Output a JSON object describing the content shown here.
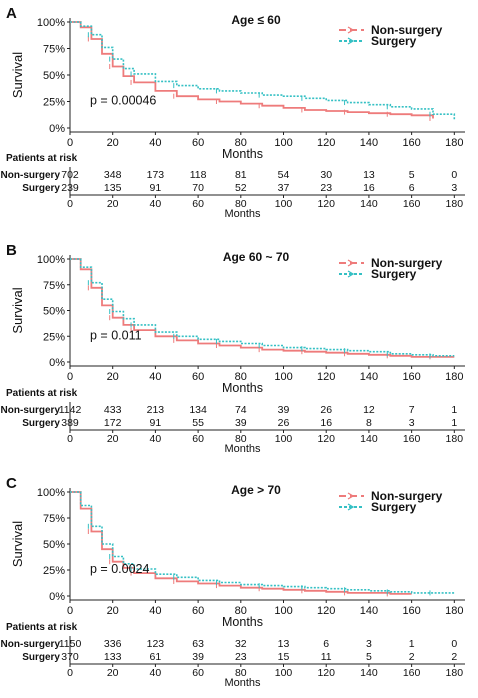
{
  "colors": {
    "non_surgery": "#ee7b7b",
    "surgery": "#35c0c4",
    "axis": "#222222",
    "text": "#111111"
  },
  "chart_data": [
    {
      "type": "line",
      "panel_letter": "A",
      "title": "Age ≤ 60",
      "ylabel": "Survival",
      "xlabel": "Months",
      "pvalue": "p = 0.00046",
      "yticks": [
        "0%",
        "25%",
        "50%",
        "75%",
        "100%"
      ],
      "xticks": [
        0,
        20,
        40,
        60,
        80,
        100,
        120,
        140,
        160,
        180
      ],
      "xlim": [
        0,
        185
      ],
      "ylim": [
        0,
        1
      ],
      "grid": false,
      "legend_position": "top-right",
      "series": [
        {
          "name": "Non-surgery",
          "style": "solid",
          "x": [
            0,
            5,
            10,
            15,
            20,
            25,
            30,
            40,
            50,
            60,
            70,
            80,
            90,
            100,
            110,
            120,
            130,
            140,
            150,
            160,
            170
          ],
          "y": [
            1.0,
            0.95,
            0.84,
            0.7,
            0.58,
            0.49,
            0.43,
            0.35,
            0.3,
            0.27,
            0.25,
            0.23,
            0.21,
            0.19,
            0.17,
            0.16,
            0.15,
            0.14,
            0.13,
            0.12,
            0.09
          ]
        },
        {
          "name": "Surgery",
          "style": "dotted",
          "x": [
            0,
            5,
            10,
            15,
            20,
            25,
            30,
            40,
            50,
            60,
            70,
            80,
            90,
            100,
            110,
            120,
            130,
            140,
            150,
            160,
            170,
            180
          ],
          "y": [
            1.0,
            0.96,
            0.88,
            0.76,
            0.65,
            0.56,
            0.51,
            0.44,
            0.4,
            0.37,
            0.35,
            0.33,
            0.31,
            0.3,
            0.28,
            0.26,
            0.24,
            0.22,
            0.2,
            0.18,
            0.13,
            0.08
          ]
        }
      ],
      "risk_table": {
        "heading": "Patients at risk",
        "rows": [
          {
            "label": "Non-surgery",
            "values": [
              "702",
              "348",
              "173",
              "118",
              "81",
              "54",
              "30",
              "13",
              "5",
              "0"
            ]
          },
          {
            "label": "Surgery",
            "values": [
              "239",
              "135",
              "91",
              "70",
              "52",
              "37",
              "23",
              "16",
              "6",
              "3"
            ]
          }
        ],
        "xticks": [
          0,
          20,
          40,
          60,
          80,
          100,
          120,
          140,
          160,
          180
        ],
        "xlabel": "Months"
      }
    },
    {
      "type": "line",
      "panel_letter": "B",
      "title": "Age 60 ~ 70",
      "ylabel": "Survival",
      "xlabel": "Months",
      "pvalue": "p = 0.011",
      "yticks": [
        "0%",
        "25%",
        "50%",
        "75%",
        "100%"
      ],
      "xticks": [
        0,
        20,
        40,
        60,
        80,
        100,
        120,
        140,
        160,
        180
      ],
      "xlim": [
        0,
        185
      ],
      "ylim": [
        0,
        1
      ],
      "grid": false,
      "legend_position": "top-right",
      "series": [
        {
          "name": "Non-surgery",
          "style": "solid",
          "x": [
            0,
            5,
            10,
            15,
            20,
            25,
            30,
            40,
            50,
            60,
            70,
            80,
            90,
            100,
            110,
            120,
            130,
            140,
            150,
            160,
            170,
            180
          ],
          "y": [
            1.0,
            0.9,
            0.72,
            0.55,
            0.43,
            0.36,
            0.31,
            0.25,
            0.21,
            0.18,
            0.16,
            0.14,
            0.12,
            0.11,
            0.1,
            0.09,
            0.08,
            0.07,
            0.06,
            0.05,
            0.05,
            0.05
          ]
        },
        {
          "name": "Surgery",
          "style": "dotted",
          "x": [
            0,
            5,
            10,
            15,
            20,
            25,
            30,
            40,
            50,
            60,
            70,
            80,
            90,
            100,
            110,
            120,
            130,
            140,
            150,
            160,
            170,
            180
          ],
          "y": [
            1.0,
            0.92,
            0.77,
            0.61,
            0.49,
            0.42,
            0.36,
            0.29,
            0.25,
            0.22,
            0.2,
            0.18,
            0.16,
            0.14,
            0.13,
            0.12,
            0.11,
            0.1,
            0.08,
            0.07,
            0.06,
            0.06
          ]
        }
      ],
      "risk_table": {
        "heading": "Patients at risk",
        "rows": [
          {
            "label": "Non-surgery",
            "values": [
              "1142",
              "433",
              "213",
              "134",
              "74",
              "39",
              "26",
              "12",
              "7",
              "1"
            ]
          },
          {
            "label": "Surgery",
            "values": [
              "389",
              "172",
              "91",
              "55",
              "39",
              "26",
              "16",
              "8",
              "3",
              "1"
            ]
          }
        ],
        "xticks": [
          0,
          20,
          40,
          60,
          80,
          100,
          120,
          140,
          160,
          180
        ],
        "xlabel": "Months"
      }
    },
    {
      "type": "line",
      "panel_letter": "C",
      "title": "Age > 70",
      "ylabel": "Survival",
      "xlabel": "Months",
      "pvalue": "p = 0.0024",
      "yticks": [
        "0%",
        "25%",
        "50%",
        "75%",
        "100%"
      ],
      "xticks": [
        0,
        20,
        40,
        60,
        80,
        100,
        120,
        140,
        160,
        180
      ],
      "xlim": [
        0,
        185
      ],
      "ylim": [
        0,
        1
      ],
      "grid": false,
      "legend_position": "top-right",
      "series": [
        {
          "name": "Non-surgery",
          "style": "solid",
          "x": [
            0,
            5,
            10,
            15,
            20,
            25,
            30,
            40,
            50,
            60,
            70,
            80,
            90,
            100,
            110,
            120,
            130,
            140,
            150,
            160
          ],
          "y": [
            1.0,
            0.84,
            0.62,
            0.45,
            0.33,
            0.27,
            0.22,
            0.17,
            0.14,
            0.12,
            0.1,
            0.08,
            0.07,
            0.06,
            0.05,
            0.04,
            0.03,
            0.03,
            0.02,
            0.02
          ]
        },
        {
          "name": "Surgery",
          "style": "dotted",
          "x": [
            0,
            5,
            10,
            15,
            20,
            25,
            30,
            40,
            50,
            60,
            70,
            80,
            90,
            100,
            110,
            120,
            130,
            140,
            150,
            160,
            170,
            180
          ],
          "y": [
            1.0,
            0.87,
            0.67,
            0.5,
            0.38,
            0.31,
            0.26,
            0.21,
            0.18,
            0.15,
            0.13,
            0.11,
            0.1,
            0.09,
            0.08,
            0.07,
            0.06,
            0.05,
            0.04,
            0.03,
            0.03,
            0.03
          ]
        }
      ],
      "risk_table": {
        "heading": "Patients at risk",
        "rows": [
          {
            "label": "Non-surgery",
            "values": [
              "1150",
              "336",
              "123",
              "63",
              "32",
              "13",
              "6",
              "3",
              "1",
              "0"
            ]
          },
          {
            "label": "Surgery",
            "values": [
              "370",
              "133",
              "61",
              "39",
              "23",
              "15",
              "11",
              "5",
              "2",
              "2"
            ]
          }
        ],
        "xticks": [
          0,
          20,
          40,
          60,
          80,
          100,
          120,
          140,
          160,
          180
        ],
        "xlabel": "Months"
      }
    }
  ]
}
